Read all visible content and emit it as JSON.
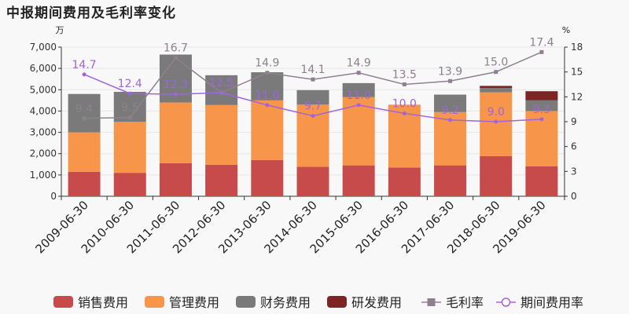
{
  "title": "中报期间费用及毛利率变化",
  "colors": {
    "sales": "#c84b4b",
    "admin": "#f7964a",
    "finance": "#7a7a7a",
    "rnd": "#7d2424",
    "gross_margin_line": "#8f8090",
    "expense_ratio_line": "#a064dc"
  },
  "chart_data": {
    "type": "bar",
    "categories": [
      "2009-06-30",
      "2010-06-30",
      "2011-06-30",
      "2012-06-30",
      "2013-06-30",
      "2014-06-30",
      "2015-06-30",
      "2016-06-30",
      "2017-06-30",
      "2018-06-30",
      "2019-06-30"
    ],
    "stacked": true,
    "left_axis": {
      "unit": "万",
      "ylim": [
        0,
        7000
      ],
      "ticks": [
        "0",
        "1,000",
        "2,000",
        "3,000",
        "4,000",
        "5,000",
        "6,000",
        "7,000"
      ]
    },
    "right_axis": {
      "unit": "%",
      "ylim": [
        0,
        18
      ],
      "ticks": [
        "0",
        "3",
        "6",
        "9",
        "12",
        "15",
        "18"
      ]
    },
    "series": [
      {
        "name": "销售费用",
        "type": "bar",
        "color_key": "sales",
        "values": [
          1150,
          1100,
          1550,
          1480,
          1700,
          1380,
          1450,
          1350,
          1450,
          1880,
          1400
        ]
      },
      {
        "name": "管理费用",
        "type": "bar",
        "color_key": "admin",
        "values": [
          1850,
          2400,
          2850,
          2800,
          2800,
          2920,
          3200,
          2950,
          2500,
          3000,
          2600
        ]
      },
      {
        "name": "财务费用",
        "type": "bar",
        "color_key": "finance",
        "values": [
          1800,
          1400,
          2250,
          1400,
          1320,
          680,
          660,
          0,
          820,
          200,
          500
        ]
      },
      {
        "name": "研发费用",
        "type": "bar",
        "color_key": "rnd",
        "values": [
          0,
          0,
          0,
          0,
          0,
          0,
          0,
          0,
          0,
          100,
          430
        ]
      },
      {
        "name": "毛利率",
        "type": "line",
        "axis": "right",
        "color_key": "gross_margin_line",
        "marker": "square",
        "values": [
          9.4,
          9.5,
          16.7,
          12.5,
          14.9,
          14.1,
          14.9,
          13.5,
          13.9,
          15.0,
          17.4
        ],
        "labels": [
          "9.4",
          "9.5",
          "16.7",
          "12.5",
          "14.9",
          "14.1",
          "14.9",
          "13.5",
          "13.9",
          "15.0",
          "17.4"
        ]
      },
      {
        "name": "期间费用率",
        "type": "line",
        "axis": "right",
        "color_key": "expense_ratio_line",
        "marker": "circle",
        "values": [
          14.7,
          12.4,
          12.3,
          12.5,
          11.0,
          9.7,
          11.0,
          10.0,
          9.2,
          9.0,
          9.3
        ],
        "labels": [
          "14.7",
          "12.4",
          "12.3",
          "12.5",
          "11.0",
          "9.7",
          "11.0",
          "10.0",
          "9.2",
          "9.0",
          "9.3"
        ]
      }
    ],
    "legend": {
      "position": "bottom",
      "items": [
        "销售费用",
        "管理费用",
        "财务费用",
        "研发费用",
        "毛利率",
        "期间费用率"
      ]
    },
    "grid": true
  }
}
